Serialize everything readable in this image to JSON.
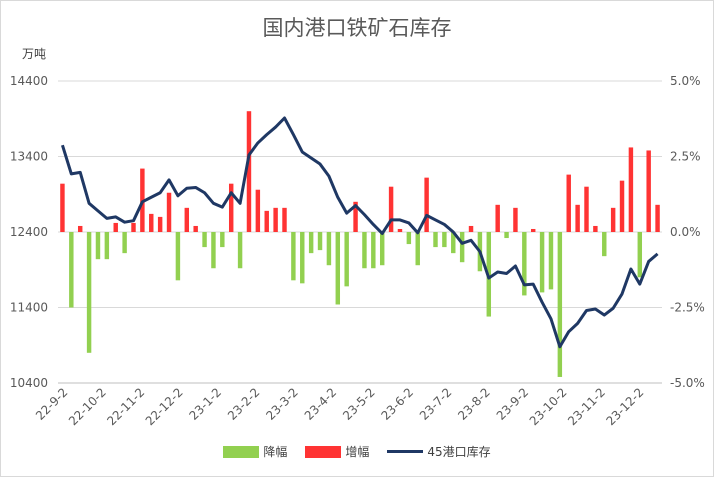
{
  "chart_data": {
    "type": "bar+line",
    "title": "国内港口铁矿石库存",
    "ylabel_left": "万吨",
    "ylim_left": [
      10400,
      14400
    ],
    "yticks_left": [
      "14400",
      "13400",
      "12400",
      "11400",
      "10400"
    ],
    "ylim_right": [
      -5.0,
      5.0
    ],
    "yticks_right": [
      "5.0%",
      "2.5%",
      "0.0%",
      "-2.5%",
      "-5.0%"
    ],
    "x_ticks": [
      "22-9-2",
      "22-10-2",
      "22-11-2",
      "22-12-2",
      "23-1-2",
      "23-2-2",
      "23-3-2",
      "23-4-2",
      "23-5-2",
      "23-6-2",
      "23-7-2",
      "23-8-2",
      "23-9-2",
      "23-10-2",
      "23-11-2",
      "23-12-2"
    ],
    "legend": [
      {
        "name": "降幅",
        "color": "#92d050",
        "kind": "box"
      },
      {
        "name": "增幅",
        "color": "#ff3333",
        "kind": "box"
      },
      {
        "name": "45港口库存",
        "color": "#1f3864",
        "kind": "line"
      }
    ],
    "pct_change": [
      1.6,
      -2.5,
      0.2,
      -4.0,
      -0.9,
      -0.9,
      0.3,
      -0.7,
      0.3,
      2.1,
      0.6,
      0.5,
      1.3,
      -1.6,
      0.8,
      0.2,
      -0.5,
      -1.2,
      -0.5,
      1.6,
      -1.2,
      4.0,
      1.4,
      0.7,
      0.8,
      0.8,
      -1.6,
      -1.7,
      -0.7,
      -0.6,
      -1.1,
      -2.4,
      -1.8,
      1.0,
      -1.2,
      -1.2,
      -1.1,
      1.5,
      0.1,
      -0.4,
      -1.1,
      1.8,
      -0.5,
      -0.5,
      -0.7,
      -1.0,
      0.2,
      -1.3,
      -2.8,
      0.9,
      -0.2,
      0.8,
      -2.1,
      0.1,
      -2.0,
      -1.9,
      -4.8,
      1.9,
      0.9,
      1.5,
      0.2,
      -0.8,
      0.8,
      1.7,
      2.8,
      -1.5,
      2.7,
      0.9
    ],
    "inventory": [
      13550,
      13170,
      13190,
      12780,
      12680,
      12580,
      12600,
      12530,
      12550,
      12800,
      12860,
      12920,
      13090,
      12880,
      12980,
      12990,
      12920,
      12780,
      12730,
      12920,
      12780,
      13420,
      13580,
      13690,
      13790,
      13910,
      13690,
      13460,
      13380,
      13300,
      13140,
      12860,
      12650,
      12750,
      12630,
      12500,
      12380,
      12560,
      12560,
      12520,
      12390,
      12620,
      12560,
      12500,
      12400,
      12250,
      12290,
      12140,
      11790,
      11870,
      11850,
      11950,
      11700,
      11710,
      11470,
      11250,
      10880,
      11080,
      11190,
      11360,
      11380,
      11300,
      11390,
      11580,
      11910,
      11710,
      12010,
      12110
    ]
  }
}
